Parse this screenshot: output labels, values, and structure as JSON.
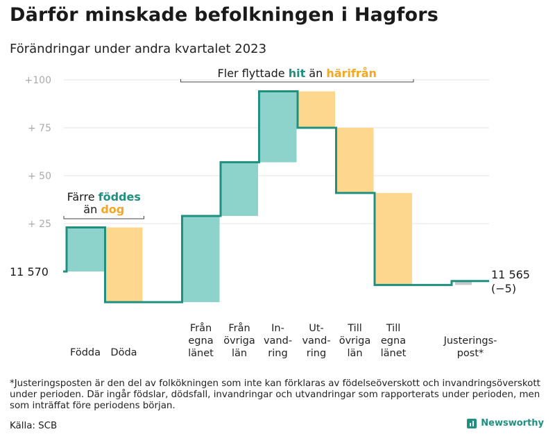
{
  "title": "Därför minskade befolkningen i Hagfors",
  "subtitle": "Förändringar under andra kvartalet 2023",
  "colors": {
    "increase": "#8ed3cb",
    "decrease": "#fdd78e",
    "adjustment": "#c8c8c8",
    "line": "#1f8f80",
    "highlight_green": "#1f8f80",
    "highlight_orange": "#f5a623"
  },
  "chart_data": {
    "type": "waterfall",
    "title": "Därför minskade befolkningen i Hagfors",
    "subtitle": "Förändringar under andra kvartalet 2023",
    "start_label": "11  570",
    "start_value": 11570,
    "end_label": "11 565",
    "end_change_label": "(−5)",
    "end_value": 11565,
    "y_ticks": [
      "+100",
      "+  75",
      "+  50",
      "+  25"
    ],
    "y_tick_values": [
      100,
      75,
      50,
      25
    ],
    "ylim": [
      -20,
      108
    ],
    "bars": [
      {
        "label": "Födda",
        "lines": [
          "Födda"
        ],
        "change": 23,
        "kind": "increase"
      },
      {
        "label": "Döda",
        "lines": [
          "Döda"
        ],
        "change": -39,
        "kind": "decrease"
      },
      {
        "label": "",
        "lines": [],
        "change": 0,
        "kind": "gap"
      },
      {
        "label": "Från egna länet",
        "lines": [
          "Från",
          "egna",
          "länet"
        ],
        "change": 45,
        "kind": "increase"
      },
      {
        "label": "Från övriga län",
        "lines": [
          "Från",
          "övriga",
          "län"
        ],
        "change": 28,
        "kind": "increase"
      },
      {
        "label": "Invandring",
        "lines": [
          "In-",
          "vand-",
          "ring"
        ],
        "change": 37,
        "kind": "increase"
      },
      {
        "label": "Utvandring",
        "lines": [
          "Ut-",
          "vand-",
          "ring"
        ],
        "change": -19,
        "kind": "decrease"
      },
      {
        "label": "Till övriga län",
        "lines": [
          "Till",
          "övriga",
          "län"
        ],
        "change": -34,
        "kind": "decrease"
      },
      {
        "label": "Till egna länet",
        "lines": [
          "Till",
          "egna",
          "länet"
        ],
        "change": -48,
        "kind": "decrease"
      },
      {
        "label": "",
        "lines": [],
        "change": 0,
        "kind": "gap"
      },
      {
        "label": "Justeringspost*",
        "lines": [
          "Justerings-",
          "post*"
        ],
        "change": 2,
        "kind": "adjustment"
      }
    ],
    "annotations": {
      "births_deaths": {
        "line1": "Färre",
        "hl1": "föddes",
        "line2": "än",
        "hl2": "dog"
      },
      "migration": {
        "pre": "Fler flyttade",
        "hl1": "hit",
        "mid": "än",
        "hl2": "härifrån"
      }
    }
  },
  "footnote": "*Justeringsposten är den del av folkökningen som inte kan förklaras av födelseöverskott och invandringsöverskott under perioden. Där ingår födslar, dödsfall, invandringar och utvandringar som rapporterats under perioden, men som inträffat före periodens början.",
  "source": "Källa: SCB",
  "brand": "Newsworthy"
}
